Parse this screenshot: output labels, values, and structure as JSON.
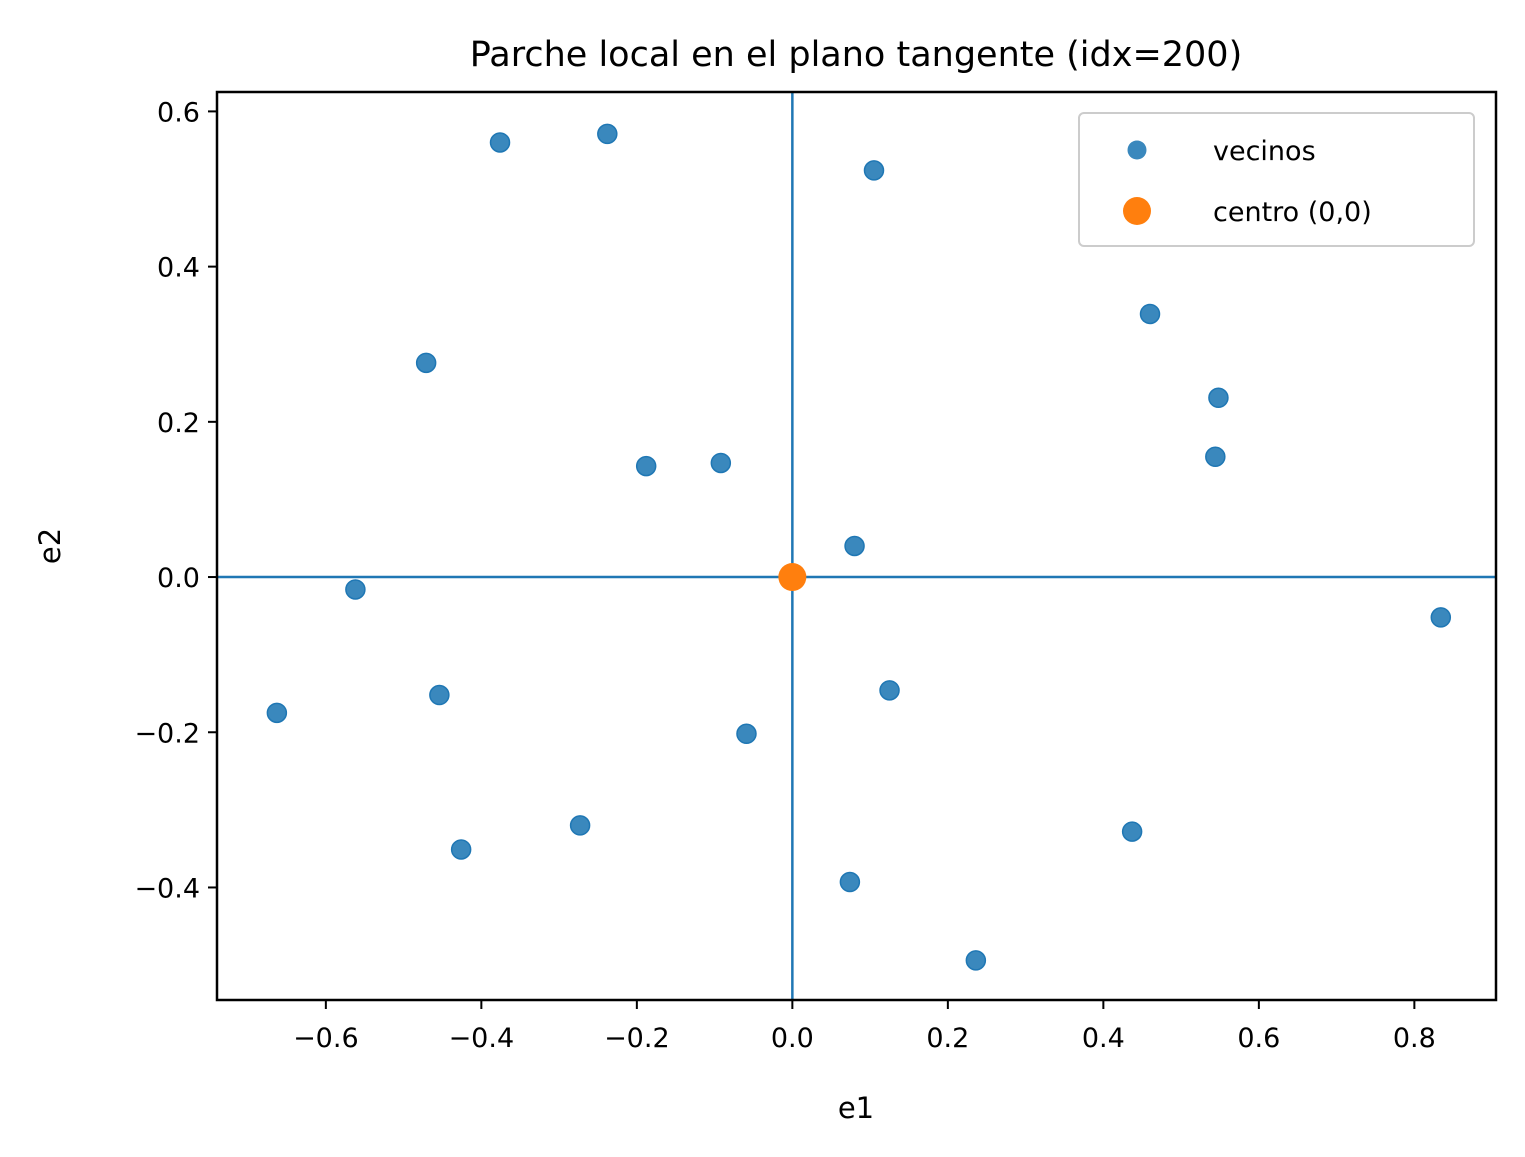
{
  "chart_data": {
    "type": "scatter",
    "title": "Parche local en el plano tangente (idx=200)",
    "xlabel": "e1",
    "ylabel": "e2",
    "xlim": [
      -0.74,
      0.905
    ],
    "ylim": [
      -0.545,
      0.625
    ],
    "xticks": [
      -0.6,
      -0.4,
      -0.2,
      0.0,
      0.2,
      0.4,
      0.6,
      0.8
    ],
    "yticks": [
      -0.4,
      -0.2,
      0.0,
      0.2,
      0.4,
      0.6
    ],
    "xtick_labels": [
      "−0.6",
      "−0.4",
      "−0.2",
      "0.0",
      "0.2",
      "0.4",
      "0.6",
      "0.8"
    ],
    "ytick_labels": [
      "−0.4",
      "−0.2",
      "0.0",
      "0.2",
      "0.4",
      "0.6"
    ],
    "grid": false,
    "reference_lines": {
      "x": 0.0,
      "y": 0.0,
      "color": "#1f77b4"
    },
    "legend_position": "top-right",
    "series": [
      {
        "name": "vecinos",
        "color": "#1f77b4",
        "points": [
          [
            -0.376,
            0.56
          ],
          [
            -0.238,
            0.571
          ],
          [
            0.105,
            0.524
          ],
          [
            0.46,
            0.339
          ],
          [
            -0.471,
            0.276
          ],
          [
            0.548,
            0.231
          ],
          [
            -0.188,
            0.143
          ],
          [
            -0.092,
            0.147
          ],
          [
            0.544,
            0.155
          ],
          [
            0.08,
            0.04
          ],
          [
            -0.562,
            -0.016
          ],
          [
            0.834,
            -0.052
          ],
          [
            -0.663,
            -0.175
          ],
          [
            -0.454,
            -0.152
          ],
          [
            0.125,
            -0.146
          ],
          [
            -0.059,
            -0.202
          ],
          [
            -0.273,
            -0.32
          ],
          [
            -0.426,
            -0.351
          ],
          [
            0.437,
            -0.328
          ],
          [
            0.074,
            -0.393
          ],
          [
            0.236,
            -0.494
          ]
        ]
      },
      {
        "name": "centro (0,0)",
        "color": "#ff7f0e",
        "points": [
          [
            0.0,
            0.0
          ]
        ]
      }
    ]
  }
}
